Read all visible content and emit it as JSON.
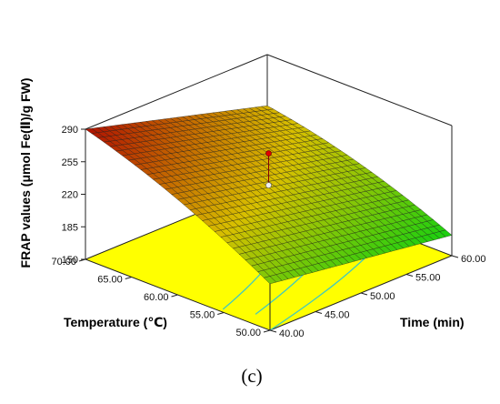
{
  "chart_data": {
    "type": "surface",
    "panel_label": "(c)",
    "zlabel": "FRAP values (μmol Fe(Ⅱ)/g FW)",
    "xlabel": "Time (min)",
    "ylabel": "Temperature (℃)",
    "x_ticks": [
      "40.00",
      "45.00",
      "50.00",
      "55.00",
      "60.00"
    ],
    "y_ticks": [
      "50.00",
      "55.00",
      "60.00",
      "65.00",
      "70.00"
    ],
    "z_ticks": [
      "150",
      "185",
      "220",
      "255",
      "290"
    ],
    "xlim": [
      40,
      60
    ],
    "ylim": [
      50,
      70
    ],
    "zlim": [
      150,
      290
    ],
    "corner_values": [
      {
        "time": 40,
        "temperature": 70,
        "frap": 290
      },
      {
        "time": 60,
        "temperature": 70,
        "frap": 235
      },
      {
        "time": 40,
        "temperature": 50,
        "frap": 200
      },
      {
        "time": 60,
        "temperature": 50,
        "frap": 172
      }
    ],
    "design_point": {
      "time": 50,
      "temperature": 60,
      "frap": 262
    },
    "colors": {
      "surface_high": "#b01000",
      "surface_mid": "#d8c000",
      "surface_low": "#10d010",
      "floor": "#ffff00",
      "contour": "#40c8c0",
      "point_high": "#e00000",
      "point_low": "#f0f0f0"
    }
  }
}
